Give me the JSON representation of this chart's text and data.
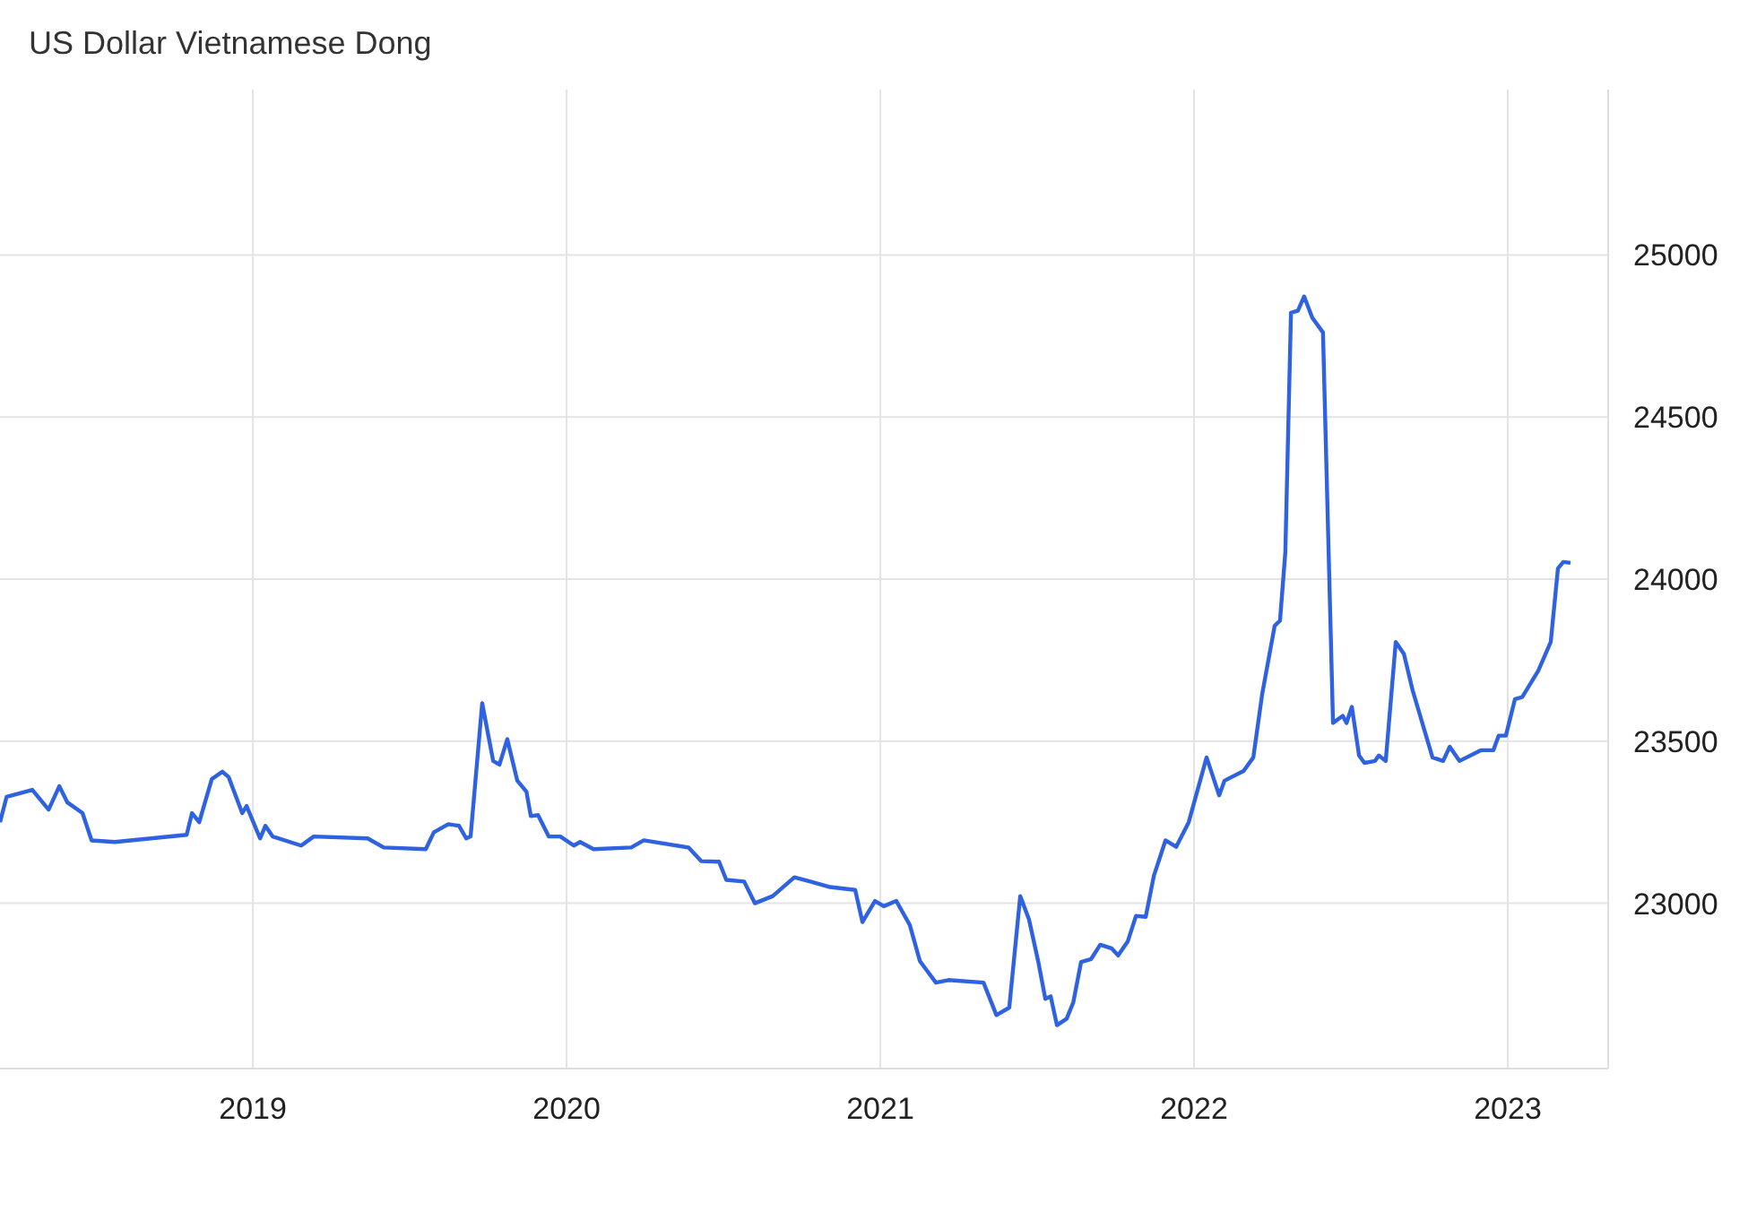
{
  "chart_data": {
    "type": "line",
    "title": "US Dollar Vietnamese Dong",
    "x": [
      2018.194,
      2018.215,
      2018.297,
      2018.349,
      2018.383,
      2018.409,
      2018.457,
      2018.486,
      2018.56,
      2018.789,
      2018.806,
      2018.829,
      2018.869,
      2018.903,
      2018.923,
      2018.966,
      2018.98,
      2019.023,
      2019.04,
      2019.063,
      2019.154,
      2019.194,
      2019.366,
      2019.417,
      2019.551,
      2019.577,
      2019.623,
      2019.657,
      2019.68,
      2019.694,
      2019.731,
      2019.766,
      2019.786,
      2019.811,
      2019.843,
      2019.872,
      2019.886,
      2019.909,
      2019.943,
      2019.98,
      2020.023,
      2020.043,
      2020.086,
      2020.206,
      2020.246,
      2020.389,
      2020.429,
      2020.486,
      2020.509,
      2020.566,
      2020.6,
      2020.657,
      2020.726,
      2020.777,
      2020.84,
      2020.92,
      2020.943,
      2020.983,
      2021.011,
      2021.051,
      2021.094,
      2021.126,
      2021.177,
      2021.217,
      2021.329,
      2021.37,
      2021.411,
      2021.446,
      2021.474,
      2021.503,
      2021.526,
      2021.543,
      2021.563,
      2021.594,
      2021.615,
      2021.64,
      2021.672,
      2021.701,
      2021.737,
      2021.758,
      2021.789,
      2021.815,
      2021.846,
      2021.872,
      2021.909,
      2021.943,
      2021.983,
      2022.04,
      2022.08,
      2022.097,
      2022.158,
      2022.189,
      2022.217,
      2022.257,
      2022.274,
      2022.291,
      2022.309,
      2022.331,
      2022.351,
      2022.377,
      2022.411,
      2022.443,
      2022.474,
      2022.486,
      2022.503,
      2022.526,
      2022.543,
      2022.577,
      2022.589,
      2022.611,
      2022.643,
      2022.669,
      2022.697,
      2022.76,
      2022.794,
      2022.815,
      2022.846,
      2022.914,
      2022.954,
      2022.971,
      2022.994,
      2023.023,
      2023.046,
      2023.097,
      2023.137,
      2023.16,
      2023.177,
      2023.2
    ],
    "series": [
      {
        "color": "#2f62e0",
        "values": [
          23250,
          23328,
          23350,
          23289,
          23361,
          23311,
          23278,
          23194,
          23189,
          23211,
          23278,
          23250,
          23383,
          23406,
          23389,
          23278,
          23300,
          23200,
          23239,
          23206,
          23178,
          23206,
          23200,
          23172,
          23167,
          23219,
          23244,
          23239,
          23200,
          23206,
          23617,
          23439,
          23428,
          23506,
          23378,
          23344,
          23269,
          23272,
          23206,
          23206,
          23178,
          23189,
          23167,
          23172,
          23194,
          23172,
          23130,
          23128,
          23072,
          23067,
          23000,
          23022,
          23080,
          23067,
          23050,
          23041,
          22942,
          23007,
          22991,
          23007,
          22933,
          22822,
          22755,
          22763,
          22755,
          22655,
          22678,
          23022,
          22950,
          22822,
          22705,
          22713,
          22624,
          22644,
          22694,
          22819,
          22828,
          22872,
          22861,
          22839,
          22883,
          22961,
          22958,
          23085,
          23194,
          23174,
          23250,
          23450,
          23333,
          23378,
          23408,
          23450,
          23644,
          23856,
          23872,
          24083,
          24822,
          24828,
          24872,
          24806,
          24761,
          23556,
          23578,
          23556,
          23606,
          23456,
          23433,
          23439,
          23456,
          23439,
          23806,
          23769,
          23656,
          23450,
          23439,
          23483,
          23439,
          23472,
          23472,
          23517,
          23517,
          23630,
          23636,
          23717,
          23806,
          24033,
          24053,
          24050
        ]
      }
    ],
    "xlim": [
      2018.194,
      2023.32
    ],
    "xticks": [
      2019,
      2020,
      2021,
      2022,
      2023
    ],
    "ylim": [
      22490,
      25510
    ],
    "yticks": [
      23000,
      23500,
      24000,
      24500,
      25000
    ],
    "grid": true,
    "marker": "none",
    "line_style": "solid"
  }
}
